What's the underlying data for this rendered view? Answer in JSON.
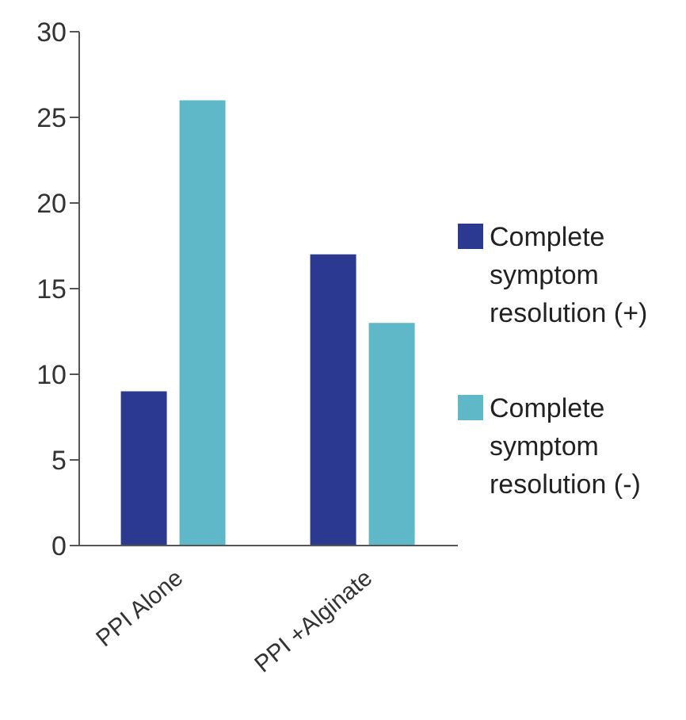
{
  "chart_data": {
    "type": "bar",
    "categories": [
      "PPI Alone",
      "PPI +Alginate"
    ],
    "series": [
      {
        "name": "Complete symptom resolution (+)",
        "color": "#2b3990",
        "values": [
          9,
          17
        ]
      },
      {
        "name": "Complete symptom resolution (-)",
        "color": "#5fb8c8",
        "values": [
          26,
          13
        ]
      }
    ],
    "ylim": [
      0,
      30
    ],
    "yticks": [
      0,
      5,
      10,
      15,
      20,
      25,
      30
    ],
    "grid": false,
    "legend": "right"
  }
}
